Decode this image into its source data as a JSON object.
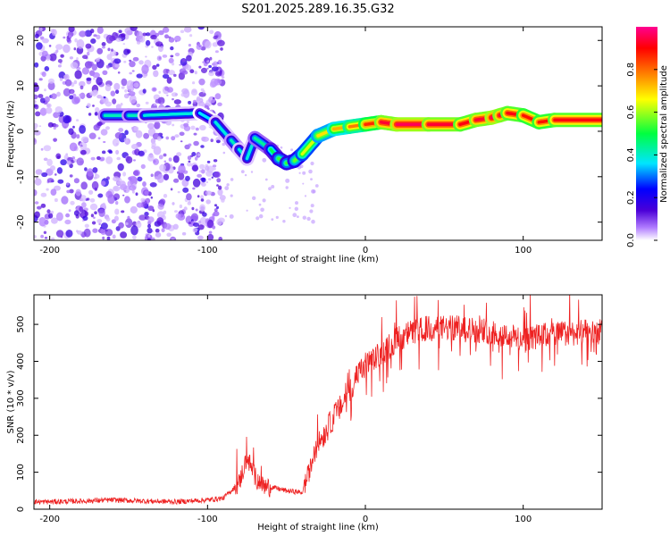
{
  "title": "S201.2025.289.16.35.G32",
  "chart_data": [
    {
      "type": "heatmap",
      "xlabel": "Height of straight line (km)",
      "ylabel": "Frequency (Hz)",
      "xlim": [
        -210,
        150
      ],
      "ylim": [
        -24,
        23
      ],
      "x_ticks": [
        -200,
        -100,
        0,
        100
      ],
      "y_ticks": [
        -20,
        -10,
        0,
        10,
        20
      ],
      "colorbar": {
        "label": "Normalized spectral amplitude",
        "range": [
          0,
          1
        ],
        "ticks": [
          0.0,
          0.2,
          0.4,
          0.6,
          0.8
        ],
        "colors": [
          "#ffffff",
          "#b07cff",
          "#4b00d8",
          "#0000ff",
          "#00e5ff",
          "#00ff40",
          "#ffff00",
          "#ff7f00",
          "#ff0000",
          "#ff0090"
        ]
      },
      "ridge": {
        "x": [
          -165,
          -150,
          -140,
          -105,
          -95,
          -85,
          -80,
          -75,
          -70,
          -60,
          -55,
          -50,
          -45,
          -40,
          -30,
          -20,
          -10,
          0,
          10,
          20,
          40,
          60,
          70,
          80,
          85,
          90,
          100,
          110,
          120,
          150
        ],
        "y": [
          3.5,
          3.5,
          3.5,
          4,
          2,
          -2,
          -4,
          -6,
          -1.5,
          -4,
          -6,
          -7,
          -6.5,
          -5,
          -1,
          0.5,
          1,
          1.5,
          2,
          1.5,
          1.5,
          1.5,
          2.5,
          3,
          3.5,
          4,
          3.5,
          2,
          2.5,
          2.5
        ],
        "amplitude": [
          0.35,
          0.35,
          0.35,
          0.3,
          0.3,
          0.35,
          0.35,
          0.3,
          0.35,
          0.4,
          0.45,
          0.5,
          0.45,
          0.55,
          0.6,
          0.65,
          0.7,
          0.75,
          0.85,
          0.9,
          0.9,
          0.85,
          0.85,
          0.9,
          0.9,
          0.85,
          0.85,
          0.8,
          0.85,
          0.85
        ]
      },
      "noise_region_x": [
        -210,
        -90
      ]
    },
    {
      "type": "line",
      "xlabel": "Height of straight line (km)",
      "ylabel": "SNR (10 * v/v)",
      "xlim": [
        -210,
        150
      ],
      "ylim": [
        0,
        580
      ],
      "x_ticks": [
        -200,
        -100,
        0,
        100
      ],
      "y_ticks": [
        0,
        100,
        200,
        300,
        400,
        500
      ],
      "series": [
        {
          "name": "SNR",
          "color": "#ee2222",
          "x": [
            -210,
            -200,
            -180,
            -160,
            -140,
            -120,
            -100,
            -90,
            -80,
            -75,
            -70,
            -65,
            -60,
            -50,
            -40,
            -35,
            -30,
            -25,
            -20,
            -15,
            -10,
            -5,
            0,
            10,
            20,
            30,
            40,
            60,
            80,
            100,
            120,
            150
          ],
          "y": [
            20,
            20,
            22,
            25,
            22,
            20,
            25,
            30,
            70,
            140,
            90,
            60,
            60,
            50,
            45,
            110,
            180,
            210,
            250,
            280,
            320,
            360,
            390,
            420,
            460,
            480,
            490,
            490,
            480,
            460,
            475,
            480
          ]
        }
      ]
    }
  ]
}
